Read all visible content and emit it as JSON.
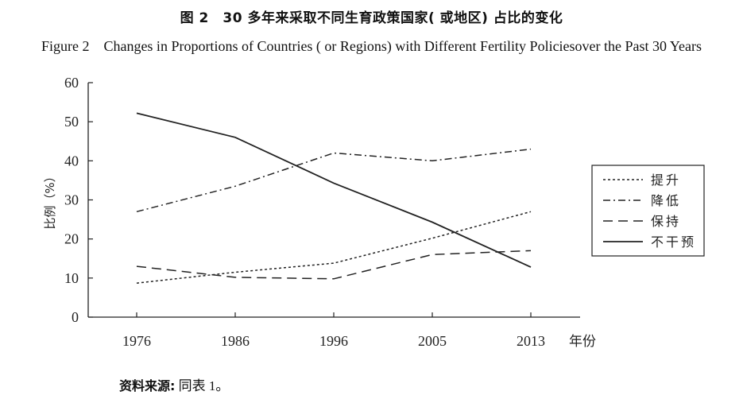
{
  "title_zh": "图 2　30 多年来采取不同生育政策国家( 或地区) 占比的变化",
  "title_en": "Figure 2　Changes in Proportions of Countries ( or Regions) with Different Fertility Policiesover the Past 30 Years",
  "source_label": "资料来源:",
  "source_value": " 同表 1。",
  "chart_data": {
    "type": "line",
    "xlabel": "年份",
    "ylabel": "比例（%）",
    "categories": [
      "1976",
      "1986",
      "1996",
      "2005",
      "2013"
    ],
    "ylim": [
      0,
      60
    ],
    "yticks": [
      0,
      10,
      20,
      30,
      40,
      50,
      60
    ],
    "grid": false,
    "legend_position": "right",
    "series": [
      {
        "name": "提升",
        "style": "dotted",
        "values": [
          8.7,
          11.5,
          13.8,
          20.2,
          27
        ]
      },
      {
        "name": "降低",
        "style": "dashdot",
        "values": [
          27,
          33.5,
          42,
          40,
          43
        ]
      },
      {
        "name": "保持",
        "style": "dashed",
        "values": [
          13,
          10.2,
          9.8,
          16,
          17
        ]
      },
      {
        "name": "不干预",
        "style": "solid",
        "values": [
          52.2,
          46,
          34.3,
          24.3,
          12.8
        ]
      }
    ]
  }
}
